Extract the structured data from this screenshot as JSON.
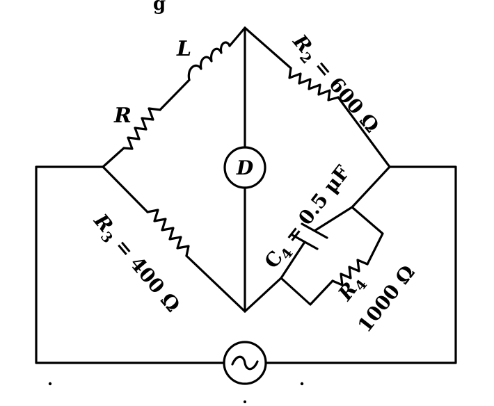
{
  "caption_fragment": "g",
  "labels": {
    "R": {
      "symbol": "R"
    },
    "L": {
      "symbol": "L"
    },
    "R2": {
      "symbol": "R",
      "sub": "2",
      "value": " = 600 Ω"
    },
    "R3": {
      "symbol": "R",
      "sub": "3",
      "value": " = 400 Ω"
    },
    "C4": {
      "symbol": "C",
      "sub": "4",
      "value": " = 0.5 μF"
    },
    "R4": {
      "symbol": "R",
      "sub": "4",
      "value": "1000 Ω"
    },
    "detector": "D",
    "source_symbol": "~"
  },
  "icons": {
    "detector": "detector-circle-icon",
    "source": "ac-source-icon",
    "resistor": "resistor-zigzag-icon",
    "inductor": "inductor-coil-icon",
    "capacitor": "capacitor-icon"
  }
}
